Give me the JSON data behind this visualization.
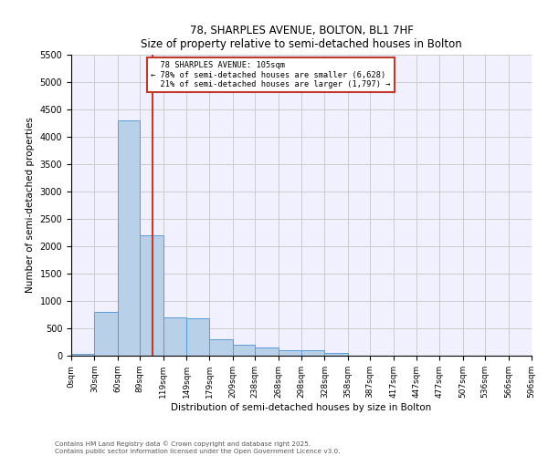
{
  "title1": "78, SHARPLES AVENUE, BOLTON, BL1 7HF",
  "title2": "Size of property relative to semi-detached houses in Bolton",
  "xlabel": "Distribution of semi-detached houses by size in Bolton",
  "ylabel": "Number of semi-detached properties",
  "bin_labels": [
    "0sqm",
    "30sqm",
    "60sqm",
    "89sqm",
    "119sqm",
    "149sqm",
    "179sqm",
    "209sqm",
    "238sqm",
    "268sqm",
    "298sqm",
    "328sqm",
    "358sqm",
    "387sqm",
    "417sqm",
    "447sqm",
    "477sqm",
    "507sqm",
    "536sqm",
    "566sqm",
    "596sqm"
  ],
  "bin_edges": [
    0,
    30,
    60,
    89,
    119,
    149,
    179,
    209,
    238,
    268,
    298,
    328,
    358,
    387,
    417,
    447,
    477,
    507,
    536,
    566,
    596
  ],
  "bar_values": [
    30,
    800,
    4300,
    2200,
    700,
    680,
    300,
    200,
    150,
    100,
    100,
    50,
    0,
    0,
    0,
    0,
    0,
    0,
    0,
    0
  ],
  "bar_color": "#b8d0e8",
  "bar_edge_color": "#5b9bd5",
  "property_size": 105,
  "property_label": "78 SHARPLES AVENUE: 105sqm",
  "smaller_pct": "78%",
  "smaller_count": "6,628",
  "larger_pct": "21%",
  "larger_count": "1,797",
  "vline_color": "#c0392b",
  "annotation_box_color": "#c0392b",
  "ylim": [
    0,
    5500
  ],
  "yticks": [
    0,
    500,
    1000,
    1500,
    2000,
    2500,
    3000,
    3500,
    4000,
    4500,
    5000,
    5500
  ],
  "grid_color": "#cccccc",
  "bg_color": "#f0f0ff",
  "footer1": "Contains HM Land Registry data © Crown copyright and database right 2025.",
  "footer2": "Contains public sector information licensed under the Open Government Licence v3.0."
}
